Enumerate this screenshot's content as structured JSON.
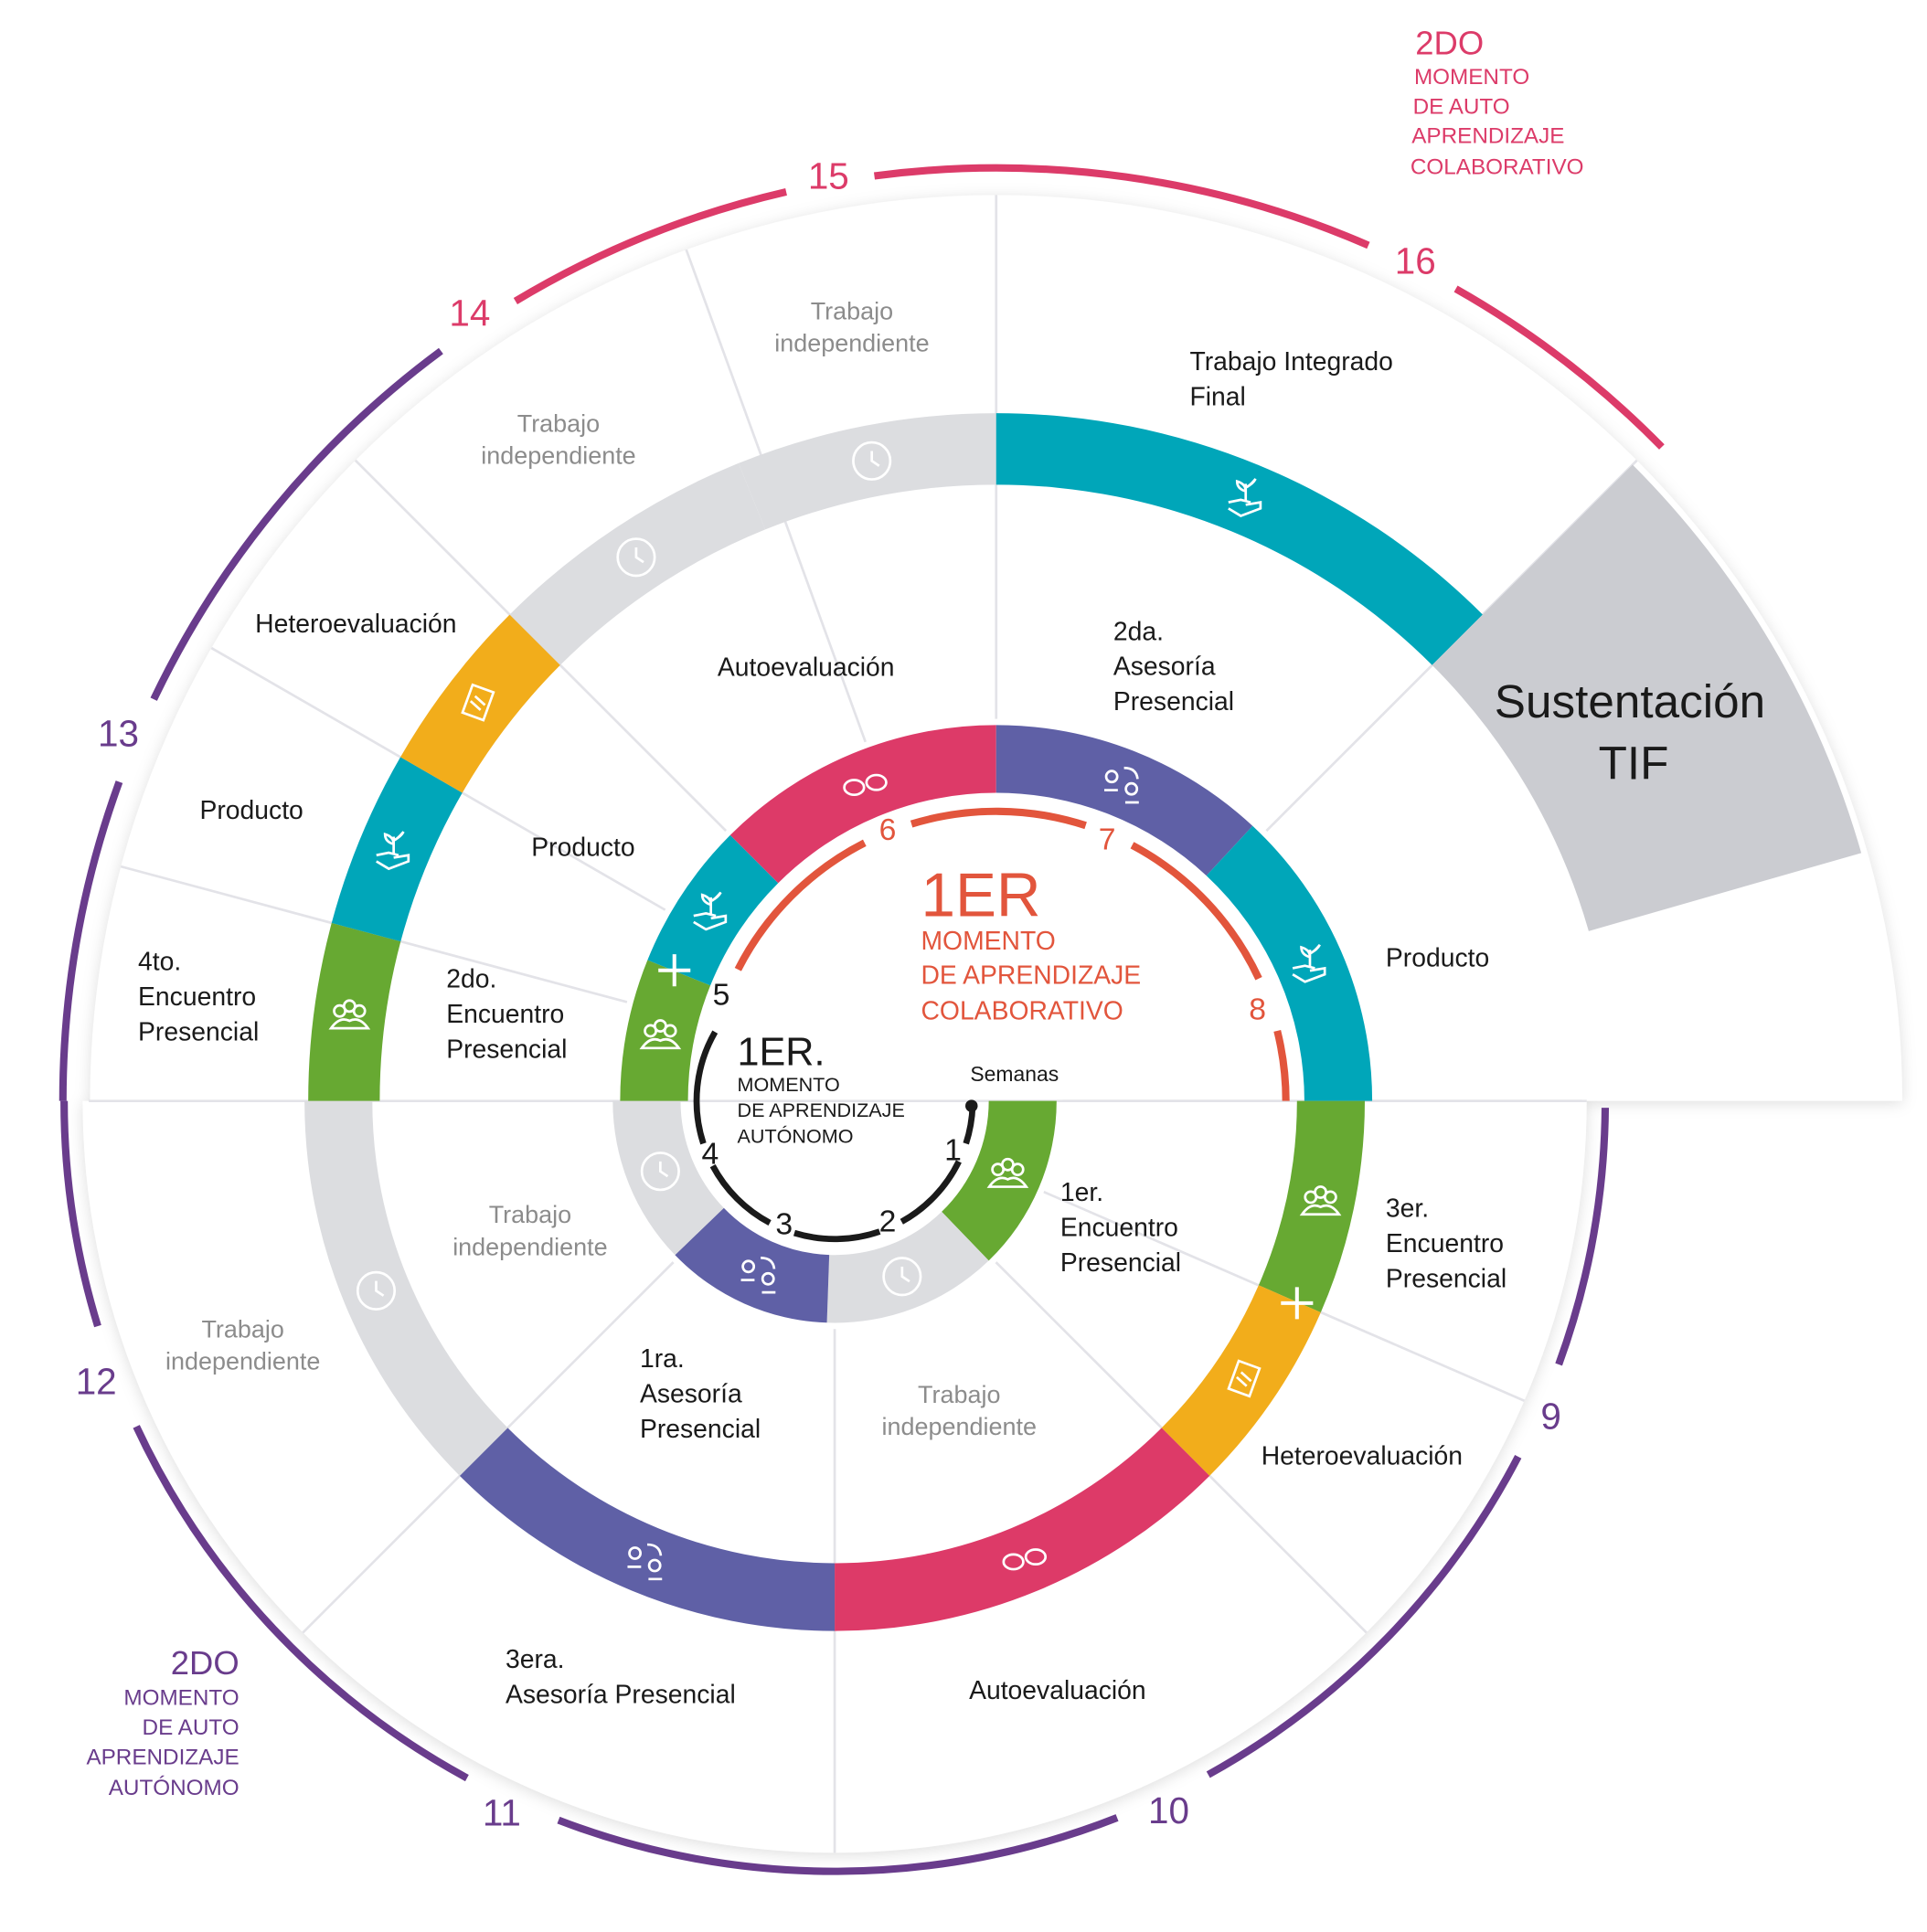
{
  "colors": {
    "green": "#67a932",
    "teal": "#00a6b9",
    "pink": "#dd3a68",
    "purple": "#5f60a6",
    "yellow": "#f2ad1b",
    "grey": "#dcdde0",
    "orange": "#e2553c",
    "outer_purple": "#693c8c",
    "outer_pink": "#dc3b69",
    "tif_grey": "#cbccd1",
    "black": "#1a1a1a"
  },
  "headers": {
    "first_collab": {
      "big": "1ER",
      "lines": [
        "MOMENTO",
        "DE APRENDIZAJE",
        "COLABORATIVO"
      ]
    },
    "first_auto": {
      "big": "1ER.",
      "lines": [
        "MOMENTO",
        "DE APRENDIZAJE",
        "AUTÓNOMO"
      ]
    },
    "second_collab": {
      "big": "2DO",
      "lines": [
        "MOMENTO",
        "DE AUTO",
        "APRENDIZAJE",
        "COLABORATIVO"
      ]
    },
    "second_auto": {
      "big": "2DO",
      "lines": [
        "MOMENTO",
        "DE AUTO",
        "APRENDIZAJE",
        "AUTÓNOMO"
      ]
    }
  },
  "weeks_label": "Semanas",
  "weeks": [
    "1",
    "2",
    "3",
    "4",
    "5",
    "6",
    "7",
    "8",
    "9",
    "10",
    "11",
    "12",
    "13",
    "14",
    "15",
    "16"
  ],
  "final": {
    "line1": "Sustentación",
    "line2": "TIF"
  },
  "activities": [
    {
      "lines": [
        "1er.",
        "Encuentro",
        "Presencial"
      ]
    },
    {
      "lines": [
        "Trabajo",
        "independiente"
      ]
    },
    {
      "lines": [
        "1ra.",
        "Asesoría",
        "Presencial"
      ]
    },
    {
      "lines": [
        "Trabajo",
        "independiente"
      ]
    },
    {
      "lines": [
        "2do.",
        "Encuentro",
        "Presencial"
      ]
    },
    {
      "lines": [
        "Producto"
      ]
    },
    {
      "lines": [
        "Autoevaluación"
      ]
    },
    {
      "lines": [
        "2da.",
        "Asesoría",
        "Presencial"
      ]
    },
    {
      "lines": [
        "Producto"
      ]
    },
    {
      "lines": [
        "3er.",
        "Encuentro",
        "Presencial"
      ]
    },
    {
      "lines": [
        "Heteroevaluación"
      ]
    },
    {
      "lines": [
        "Autoevaluación"
      ]
    },
    {
      "lines": [
        "3era.",
        "Asesoría Presencial"
      ]
    },
    {
      "lines": [
        "Trabajo",
        "independiente"
      ]
    },
    {
      "lines": [
        "4to.",
        "Encuentro",
        "Presencial"
      ]
    },
    {
      "lines": [
        "Producto"
      ]
    },
    {
      "lines": [
        "Heteroevaluación"
      ]
    },
    {
      "lines": [
        "Trabajo",
        "independiente"
      ]
    },
    {
      "lines": [
        "Trabajo",
        "independiente"
      ]
    },
    {
      "lines": [
        "Trabajo Integrado",
        "Final"
      ]
    }
  ]
}
